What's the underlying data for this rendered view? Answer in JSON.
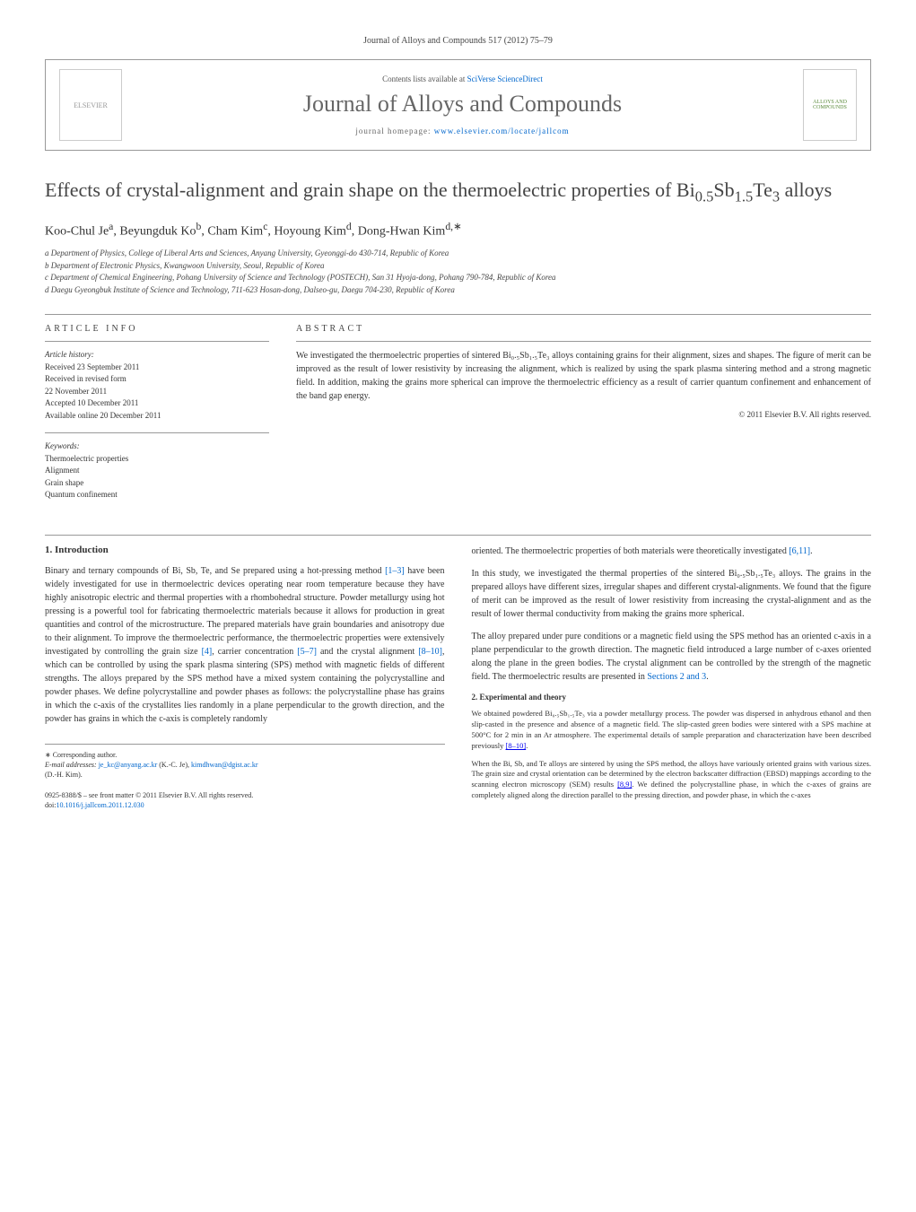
{
  "journal_ref": "Journal of Alloys and Compounds 517 (2012) 75–79",
  "contents_lists": "Contents lists available at ",
  "contents_link": "SciVerse ScienceDirect",
  "journal_title": "Journal of Alloys and Compounds",
  "homepage_label": "journal homepage: ",
  "homepage_url": "www.elsevier.com/locate/jallcom",
  "elsevier_logo_text": "ELSEVIER",
  "cover_text": "ALLOYS AND COMPOUNDS",
  "title_part1": "Effects of crystal-alignment and grain shape on the thermoelectric properties of Bi",
  "title_sub1": "0.5",
  "title_part2": "Sb",
  "title_sub2": "1.5",
  "title_part3": "Te",
  "title_sub3": "3",
  "title_part4": " alloys",
  "authors_html": "Koo-Chul Je<sup>a</sup>, Beyungduk Ko<sup>b</sup>, Cham Kim<sup>c</sup>, Hoyoung Kim<sup>d</sup>, Dong-Hwan Kim<sup>d,∗</sup>",
  "affiliations": [
    "a Department of Physics, College of Liberal Arts and Sciences, Anyang University, Gyeonggi-do 430-714, Republic of Korea",
    "b Department of Electronic Physics, Kwangwoon University, Seoul, Republic of Korea",
    "c Department of Chemical Engineering, Pohang University of Science and Technology (POSTECH), San 31 Hyoja-dong, Pohang 790-784, Republic of Korea",
    "d Daegu Gyeongbuk Institute of Science and Technology, 711-623 Hosan-dong, Dalseo-gu, Daegu 704-230, Republic of Korea"
  ],
  "article_info_heading": "article info",
  "abstract_heading": "abstract",
  "history_label": "Article history:",
  "history": [
    "Received 23 September 2011",
    "Received in revised form",
    "22 November 2011",
    "Accepted 10 December 2011",
    "Available online 20 December 2011"
  ],
  "keywords_label": "Keywords:",
  "keywords": [
    "Thermoelectric properties",
    "Alignment",
    "Grain shape",
    "Quantum confinement"
  ],
  "abstract_text": "We investigated the thermoelectric properties of sintered Bi₀.₅Sb₁.₅Te₃ alloys containing grains for their alignment, sizes and shapes. The figure of merit can be improved as the result of lower resistivity by increasing the alignment, which is realized by using the spark plasma sintering method and a strong magnetic field. In addition, making the grains more spherical can improve the thermoelectric efficiency as a result of carrier quantum confinement and enhancement of the band gap energy.",
  "copyright": "© 2011 Elsevier B.V. All rights reserved.",
  "intro_heading": "1. Introduction",
  "intro_p1": "Binary and ternary compounds of Bi, Sb, Te, and Se prepared using a hot-pressing method [1–3] have been widely investigated for use in thermoelectric devices operating near room temperature because they have highly anisotropic electric and thermal properties with a rhombohedral structure. Powder metallurgy using hot pressing is a powerful tool for fabricating thermoelectric materials because it allows for production in great quantities and control of the microstructure. The prepared materials have grain boundaries and anisotropy due to their alignment. To improve the thermoelectric performance, the thermoelectric properties were extensively investigated by controlling the grain size [4], carrier concentration [5–7] and the crystal alignment [8–10], which can be controlled by using the spark plasma sintering (SPS) method with magnetic fields of different strengths. The alloys prepared by the SPS method have a mixed system containing the polycrystalline and powder phases. We define polycrystalline and powder phases as follows: the polycrystalline phase has grains in which the c-axis of the crystallites lies randomly in a plane perpendicular to the growth direction, and the powder has grains in which the c-axis is completely randomly",
  "intro_p2": "oriented. The thermoelectric properties of both materials were theoretically investigated [6,11].",
  "intro_p3": "In this study, we investigated the thermal properties of the sintered Bi₀.₅Sb₁.₅Te₃ alloys. The grains in the prepared alloys have different sizes, irregular shapes and different crystal-alignments. We found that the figure of merit can be improved as the result of lower resistivity from increasing the crystal-alignment and as the result of lower thermal conductivity from making the grains more spherical.",
  "intro_p4": "The alloy prepared under pure conditions or a magnetic field using the SPS method has an oriented c-axis in a plane perpendicular to the growth direction. The magnetic field introduced a large number of c-axes oriented along the plane in the green bodies. The crystal alignment can be controlled by the strength of the magnetic field. The thermoelectric results are presented in Sections 2 and 3.",
  "exp_heading": "2. Experimental and theory",
  "exp_p1": "We obtained powdered Bi₀.₅Sb₁.₅Te₃ via a powder metallurgy process. The powder was dispersed in anhydrous ethanol and then slip-casted in the presence and absence of a magnetic field. The slip-casted green bodies were sintered with a SPS machine at 500°C for 2 min in an Ar atmosphere. The experimental details of sample preparation and characterization have been described previously [8–10].",
  "exp_p2": "When the Bi, Sb, and Te alloys are sintered by using the SPS method, the alloys have variously oriented grains with various sizes. The grain size and crystal orientation can be determined by the electron backscatter diffraction (EBSD) mappings according to the scanning electron microscopy (SEM) results [8,9]. We defined the polycrystalline phase, in which the c-axes of grains are completely aligned along the direction parallel to the pressing direction, and powder phase, in which the c-axes",
  "corresponding": "∗ Corresponding author.",
  "email_label": "E-mail addresses: ",
  "email1": "je_kc@anyang.ac.kr",
  "email1_name": " (K.-C. Je), ",
  "email2": "kimdhwan@dgist.ac.kr",
  "email2_name": " (D.-H. Kim).",
  "issn": "0925-8388/$ – see front matter © 2011 Elsevier B.V. All rights reserved.",
  "doi_label": "doi:",
  "doi": "10.1016/j.jallcom.2011.12.030",
  "colors": {
    "link": "#0066cc",
    "text": "#333333",
    "heading_gray": "#666666",
    "border": "#999999"
  }
}
